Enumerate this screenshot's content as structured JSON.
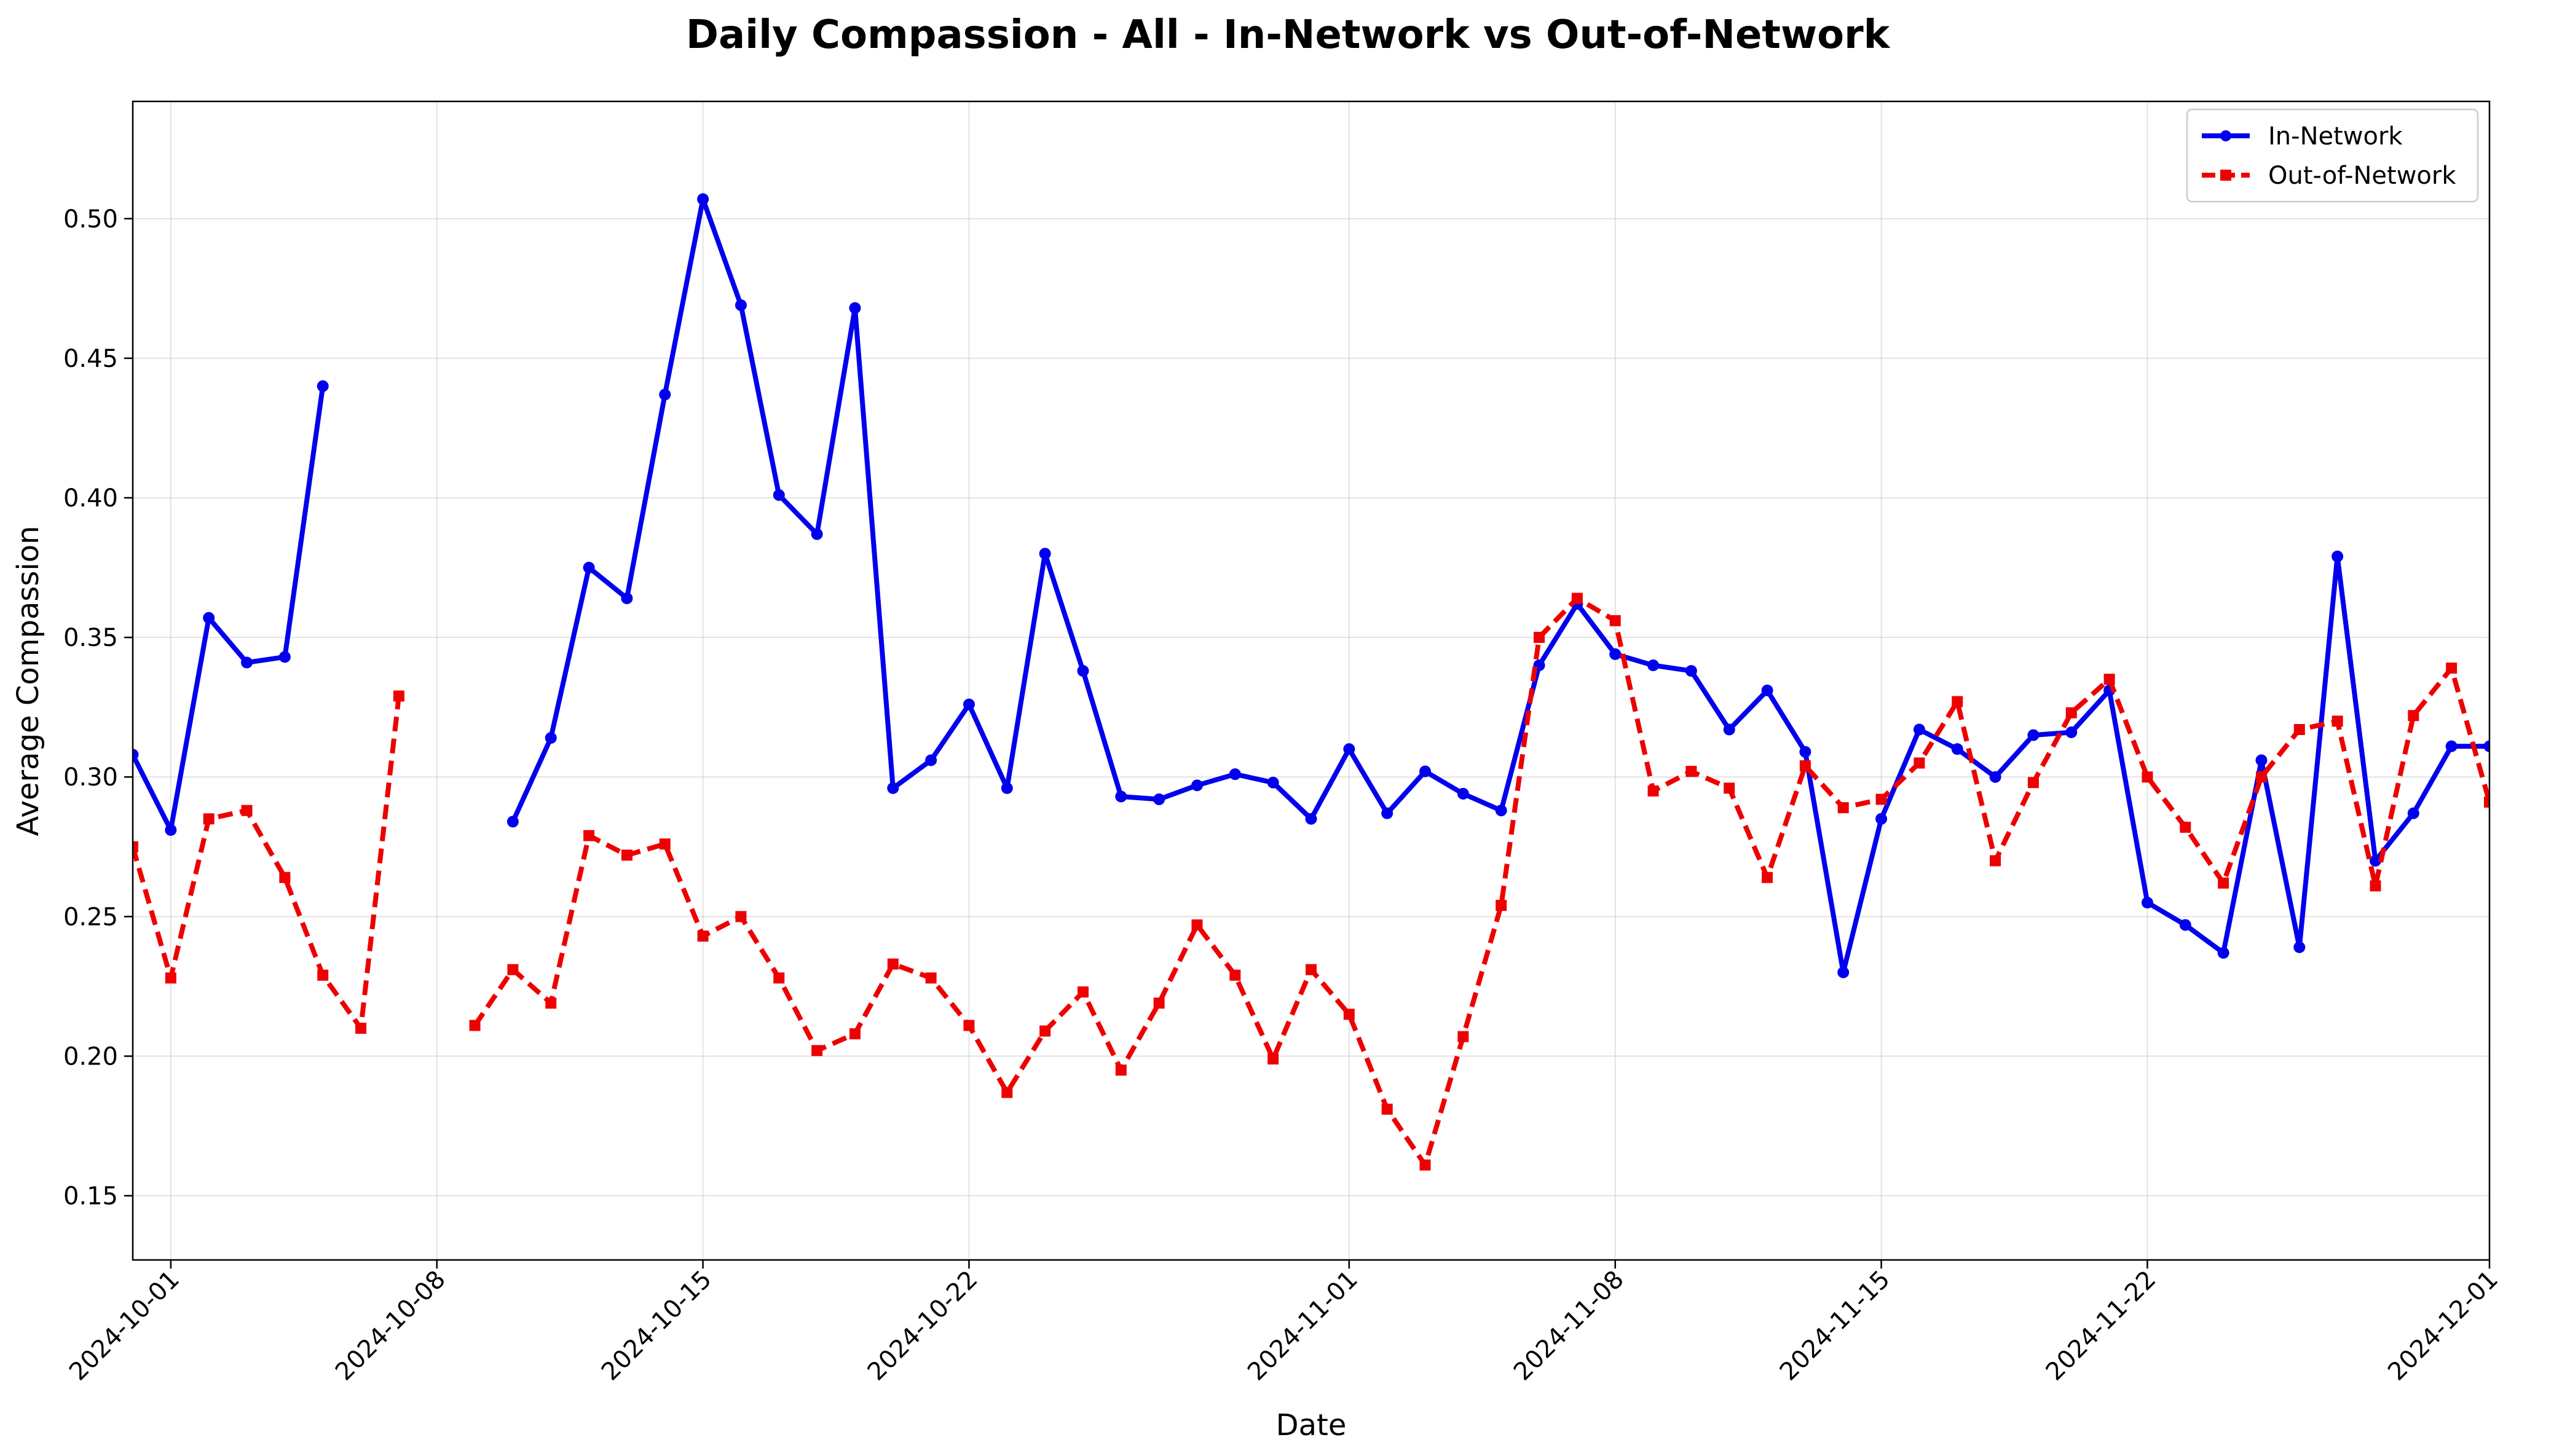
{
  "chart_data": {
    "type": "line",
    "title": "Daily Compassion - All - In-Network vs Out-of-Network",
    "xlabel": "Date",
    "ylabel": "Average Compassion",
    "x_start": "2024-09-30",
    "x_end": "2024-12-01",
    "ylim": [
      0.127,
      0.542
    ],
    "x_ticks": [
      "2024-10-01",
      "2024-10-08",
      "2024-10-15",
      "2024-10-22",
      "2024-11-01",
      "2024-11-08",
      "2024-11-15",
      "2024-11-22",
      "2024-12-01"
    ],
    "y_ticks": [
      "0.15",
      "0.20",
      "0.25",
      "0.30",
      "0.35",
      "0.40",
      "0.45",
      "0.50"
    ],
    "grid": true,
    "legend_position": "top-right",
    "series": [
      {
        "name": "In-Network",
        "color": "#0000ee",
        "line_style": "solid",
        "marker": "circle",
        "points": [
          [
            "2024-09-30",
            0.308
          ],
          [
            "2024-10-01",
            0.281
          ],
          [
            "2024-10-02",
            0.357
          ],
          [
            "2024-10-03",
            0.341
          ],
          [
            "2024-10-04",
            0.343
          ],
          [
            "2024-10-05",
            0.44
          ],
          [
            "2024-10-10",
            0.284
          ],
          [
            "2024-10-11",
            0.314
          ],
          [
            "2024-10-12",
            0.375
          ],
          [
            "2024-10-13",
            0.364
          ],
          [
            "2024-10-14",
            0.437
          ],
          [
            "2024-10-15",
            0.507
          ],
          [
            "2024-10-16",
            0.469
          ],
          [
            "2024-10-17",
            0.401
          ],
          [
            "2024-10-18",
            0.387
          ],
          [
            "2024-10-19",
            0.468
          ],
          [
            "2024-10-20",
            0.296
          ],
          [
            "2024-10-21",
            0.306
          ],
          [
            "2024-10-22",
            0.326
          ],
          [
            "2024-10-23",
            0.296
          ],
          [
            "2024-10-24",
            0.38
          ],
          [
            "2024-10-25",
            0.338
          ],
          [
            "2024-10-26",
            0.293
          ],
          [
            "2024-10-27",
            0.292
          ],
          [
            "2024-10-28",
            0.297
          ],
          [
            "2024-10-29",
            0.301
          ],
          [
            "2024-10-30",
            0.298
          ],
          [
            "2024-10-31",
            0.285
          ],
          [
            "2024-11-01",
            0.31
          ],
          [
            "2024-11-02",
            0.287
          ],
          [
            "2024-11-03",
            0.302
          ],
          [
            "2024-11-04",
            0.294
          ],
          [
            "2024-11-05",
            0.288
          ],
          [
            "2024-11-06",
            0.34
          ],
          [
            "2024-11-07",
            0.362
          ],
          [
            "2024-11-08",
            0.344
          ],
          [
            "2024-11-09",
            0.34
          ],
          [
            "2024-11-10",
            0.338
          ],
          [
            "2024-11-11",
            0.317
          ],
          [
            "2024-11-12",
            0.331
          ],
          [
            "2024-11-13",
            0.309
          ],
          [
            "2024-11-14",
            0.23
          ],
          [
            "2024-11-15",
            0.285
          ],
          [
            "2024-11-16",
            0.317
          ],
          [
            "2024-11-17",
            0.31
          ],
          [
            "2024-11-18",
            0.3
          ],
          [
            "2024-11-19",
            0.315
          ],
          [
            "2024-11-20",
            0.316
          ],
          [
            "2024-11-21",
            0.331
          ],
          [
            "2024-11-22",
            0.255
          ],
          [
            "2024-11-23",
            0.247
          ],
          [
            "2024-11-24",
            0.237
          ],
          [
            "2024-11-25",
            0.306
          ],
          [
            "2024-11-26",
            0.239
          ],
          [
            "2024-11-27",
            0.379
          ],
          [
            "2024-11-28",
            0.27
          ],
          [
            "2024-11-29",
            0.287
          ],
          [
            "2024-11-30",
            0.311
          ],
          [
            "2024-12-01",
            0.311
          ]
        ]
      },
      {
        "name": "Out-of-Network",
        "color": "#ee0000",
        "line_style": "dashed",
        "marker": "square",
        "points": [
          [
            "2024-09-30",
            0.275
          ],
          [
            "2024-10-01",
            0.228
          ],
          [
            "2024-10-02",
            0.285
          ],
          [
            "2024-10-03",
            0.288
          ],
          [
            "2024-10-04",
            0.264
          ],
          [
            "2024-10-05",
            0.229
          ],
          [
            "2024-10-06",
            0.21
          ],
          [
            "2024-10-07",
            0.329
          ],
          [
            "2024-10-09",
            0.211
          ],
          [
            "2024-10-10",
            0.231
          ],
          [
            "2024-10-11",
            0.219
          ],
          [
            "2024-10-12",
            0.279
          ],
          [
            "2024-10-13",
            0.272
          ],
          [
            "2024-10-14",
            0.276
          ],
          [
            "2024-10-15",
            0.243
          ],
          [
            "2024-10-16",
            0.25
          ],
          [
            "2024-10-17",
            0.228
          ],
          [
            "2024-10-18",
            0.202
          ],
          [
            "2024-10-19",
            0.208
          ],
          [
            "2024-10-20",
            0.233
          ],
          [
            "2024-10-21",
            0.228
          ],
          [
            "2024-10-22",
            0.211
          ],
          [
            "2024-10-23",
            0.187
          ],
          [
            "2024-10-24",
            0.209
          ],
          [
            "2024-10-25",
            0.223
          ],
          [
            "2024-10-26",
            0.195
          ],
          [
            "2024-10-27",
            0.219
          ],
          [
            "2024-10-28",
            0.247
          ],
          [
            "2024-10-29",
            0.229
          ],
          [
            "2024-10-30",
            0.199
          ],
          [
            "2024-10-31",
            0.231
          ],
          [
            "2024-11-01",
            0.215
          ],
          [
            "2024-11-02",
            0.181
          ],
          [
            "2024-11-03",
            0.161
          ],
          [
            "2024-11-04",
            0.207
          ],
          [
            "2024-11-05",
            0.254
          ],
          [
            "2024-11-06",
            0.35
          ],
          [
            "2024-11-07",
            0.364
          ],
          [
            "2024-11-08",
            0.356
          ],
          [
            "2024-11-09",
            0.295
          ],
          [
            "2024-11-10",
            0.302
          ],
          [
            "2024-11-11",
            0.296
          ],
          [
            "2024-11-12",
            0.264
          ],
          [
            "2024-11-13",
            0.304
          ],
          [
            "2024-11-14",
            0.289
          ],
          [
            "2024-11-15",
            0.292
          ],
          [
            "2024-11-16",
            0.305
          ],
          [
            "2024-11-17",
            0.327
          ],
          [
            "2024-11-18",
            0.27
          ],
          [
            "2024-11-19",
            0.298
          ],
          [
            "2024-11-20",
            0.323
          ],
          [
            "2024-11-21",
            0.335
          ],
          [
            "2024-11-22",
            0.3
          ],
          [
            "2024-11-23",
            0.282
          ],
          [
            "2024-11-24",
            0.262
          ],
          [
            "2024-11-25",
            0.3
          ],
          [
            "2024-11-26",
            0.317
          ],
          [
            "2024-11-27",
            0.32
          ],
          [
            "2024-11-28",
            0.261
          ],
          [
            "2024-11-29",
            0.322
          ],
          [
            "2024-11-30",
            0.339
          ],
          [
            "2024-12-01",
            0.291
          ]
        ]
      }
    ]
  }
}
